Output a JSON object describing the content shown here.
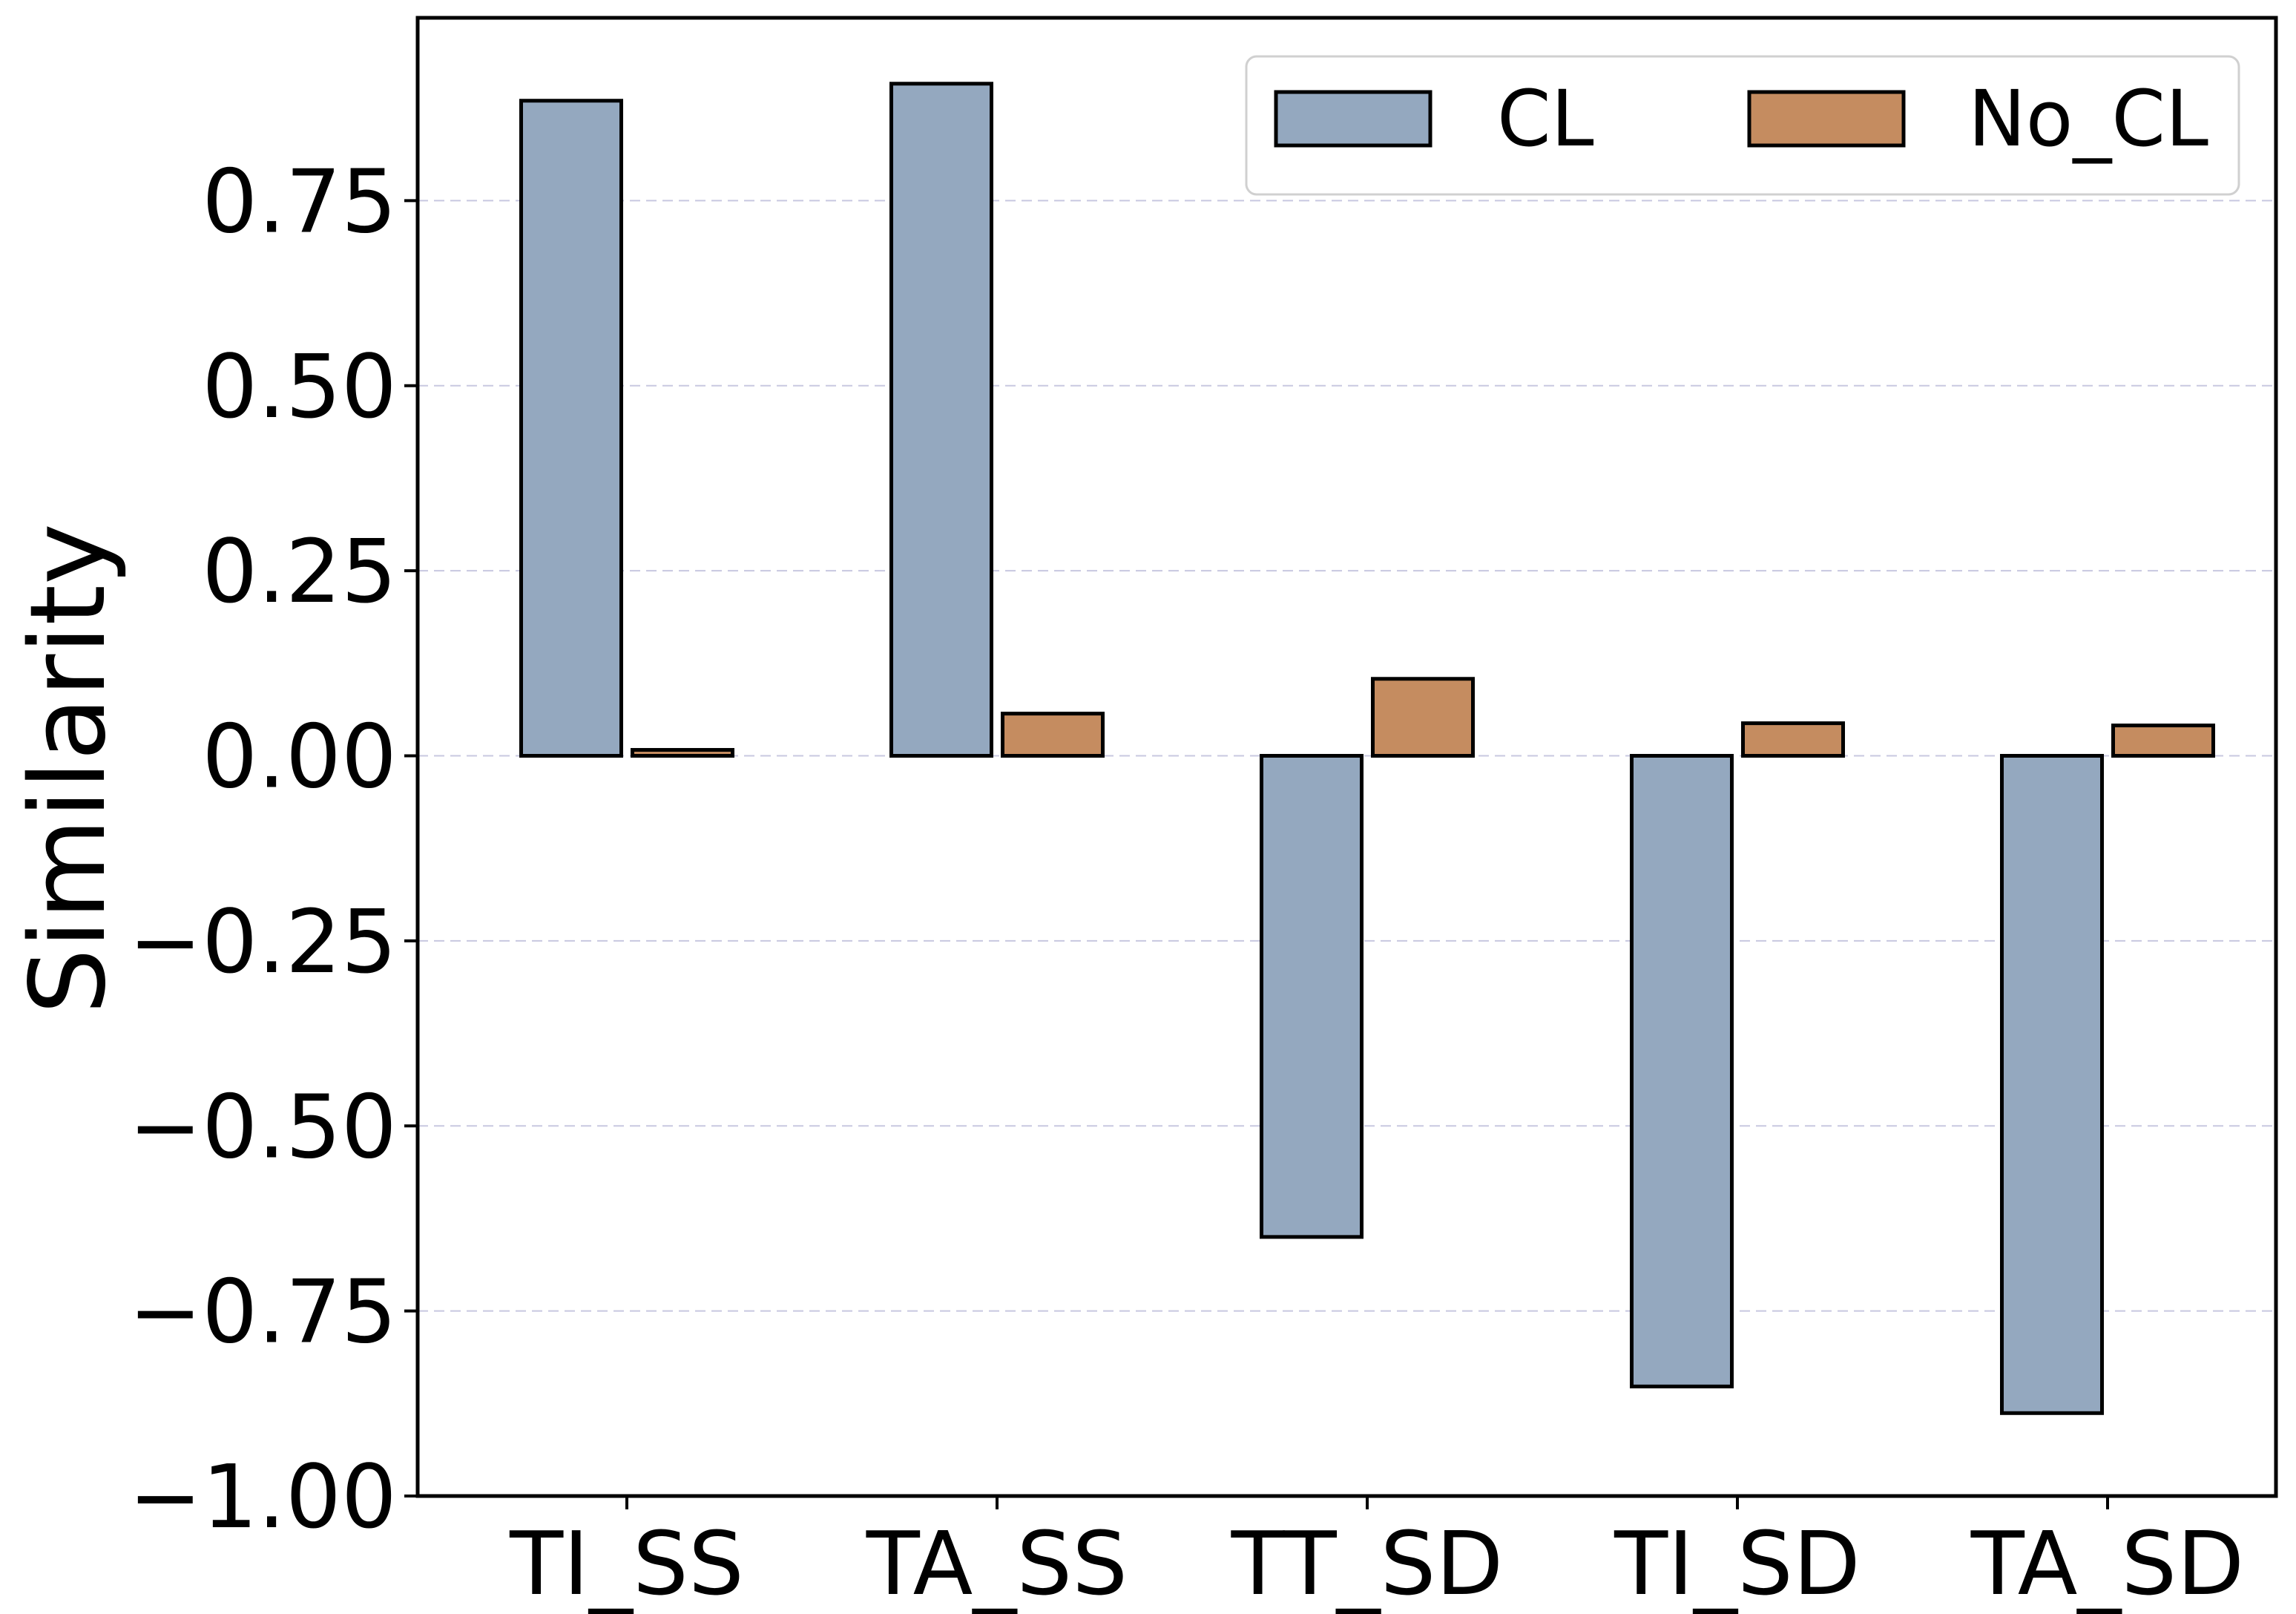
{
  "chart_data": {
    "type": "bar",
    "title": "",
    "xlabel": "",
    "ylabel": "Similarity",
    "categories": [
      "TI_SS",
      "TA_SS",
      "TT_SD",
      "TI_SD",
      "TA_SD"
    ],
    "series": [
      {
        "name": "CL",
        "color": "#94a8bf",
        "values": [
          0.885,
          0.908,
          -0.65,
          -0.852,
          -0.888
        ]
      },
      {
        "name": "No_CL",
        "color": "#c58c60",
        "values": [
          0.008,
          0.057,
          0.104,
          0.044,
          0.041
        ]
      }
    ],
    "ylim": [
      -1.0,
      1.0
    ],
    "yticks": [
      -1.0,
      -0.75,
      -0.5,
      -0.25,
      0.0,
      0.25,
      0.5,
      0.75
    ],
    "ytick_labels": [
      "−1.00",
      "−0.75",
      "−0.50",
      "−0.25",
      "0.00",
      "0.25",
      "0.50",
      "0.75"
    ],
    "grid": true,
    "legend_position": "top-right"
  }
}
